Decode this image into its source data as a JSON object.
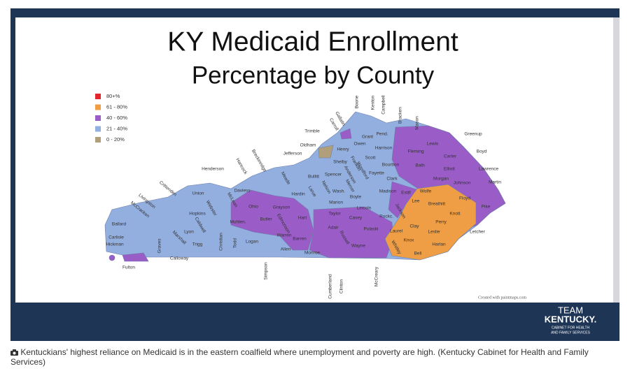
{
  "slide": {
    "title": "KY Medicaid Enrollment",
    "subtitle": "Percentage by County",
    "legend": [
      {
        "label": "80+%",
        "color": "#e3262b"
      },
      {
        "label": "61 - 80%",
        "color": "#ef9e45"
      },
      {
        "label": "40 - 60%",
        "color": "#9a5cc6"
      },
      {
        "label": "21 - 40%",
        "color": "#93afe0"
      },
      {
        "label": "0 - 20%",
        "color": "#b19f7c"
      }
    ],
    "counties": [
      "Boone",
      "Kenton",
      "Campbell",
      "Gallatin",
      "Carroll",
      "Bracken",
      "Mason",
      "Greenup",
      "Boyd",
      "Lawrence",
      "Martin",
      "Pike",
      "Trimble",
      "Oldham",
      "Jefferson",
      "Henry",
      "Grant",
      "Pend.",
      "Owen",
      "Harrison",
      "Lewis",
      "Fleming",
      "Carter",
      "Elliott",
      "Henderson",
      "Hancock",
      "Breckinridge",
      "Meade",
      "Shelby",
      "Scott",
      "Bourbon",
      "Bath",
      "Morgan",
      "Johnson",
      "Floyd",
      "Knott",
      "Breathitt",
      "Wolfe",
      "Letcher",
      "Perry",
      "Leslie",
      "Harlan",
      "Bell",
      "Knox",
      "Clay",
      "Whitley",
      "Laurel",
      "Jackson",
      "Lee",
      "Estill",
      "Madison",
      "Clark",
      "Fayette",
      "Woodford",
      "Franklin",
      "Anderson",
      "Spencer",
      "Bullitt",
      "Nelson",
      "Wash.",
      "Boyle",
      "Mercer",
      "Marion",
      "Lincoln",
      "Rockc.",
      "Pulaski",
      "Casey",
      "Taylor",
      "Adair",
      "Russell",
      "Wayne",
      "Cumberland",
      "Clinton",
      "McCreary",
      "Monroe",
      "Barren",
      "Allen",
      "Warren",
      "Simpson",
      "Hart",
      "Larue",
      "Hardin",
      "Grayson",
      "Edmonson",
      "Butler",
      "Ohio",
      "Daviess",
      "McLean",
      "Muhlen.",
      "Logan",
      "Todd",
      "Christian",
      "Trigg",
      "Lyon",
      "Caldwell",
      "Hopkins",
      "Webster",
      "Union",
      "Crittenden",
      "Livingston",
      "McCracken",
      "Ballard",
      "Carlisle",
      "Hickman",
      "Fulton",
      "Graves",
      "Calloway",
      "Marshall"
    ],
    "credit": "Created with paintmaps.com",
    "logo": {
      "team": "TEAM",
      "state": "KENTUCKY.",
      "agency": [
        "CABINET FOR HEALTH",
        "AND FAMILY SERVICES"
      ]
    }
  },
  "caption": "Kentuckians' highest reliance on Medicaid is in the eastern coalfield where unemployment and poverty are high. (Kentucky Cabinet for Health and Family Services)"
}
